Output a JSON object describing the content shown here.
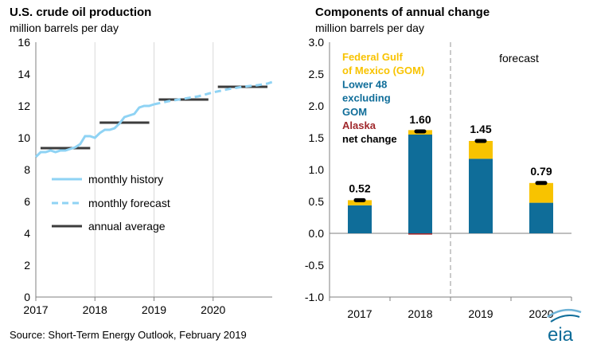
{
  "source": "Source: Short-Term Energy Outlook, February 2019",
  "logo_text": "eia",
  "colors": {
    "history": "#8fd3f4",
    "forecast_line": "#8fd3f4",
    "annual": "#3c3c3c",
    "gom": "#f8c300",
    "lower48": "#0f6d99",
    "alaska": "#a0282c",
    "net": "#000000",
    "grid": "#d9d9d9",
    "divider": "#a6a6a6"
  },
  "chart_data": [
    {
      "type": "line",
      "title": "U.S. crude oil production",
      "subtitle": "million barrels per day",
      "ylim": [
        0,
        16
      ],
      "yticks": [
        "0",
        "2",
        "4",
        "6",
        "8",
        "10",
        "12",
        "14",
        "16"
      ],
      "xlim": [
        2017,
        2021
      ],
      "xticks": [
        "2017",
        "2018",
        "2019",
        "2020"
      ],
      "legend": [
        "monthly history",
        "monthly forecast",
        "annual average"
      ],
      "series": [
        {
          "name": "monthly history",
          "style": "solid",
          "x": [
            2017.0,
            2017.083,
            2017.167,
            2017.25,
            2017.333,
            2017.417,
            2017.5,
            2017.583,
            2017.667,
            2017.75,
            2017.833,
            2017.917,
            2018.0,
            2018.083,
            2018.167,
            2018.25,
            2018.333,
            2018.417,
            2018.5,
            2018.583,
            2018.667,
            2018.75,
            2018.833,
            2018.917,
            2019.0
          ],
          "values": [
            8.8,
            9.1,
            9.1,
            9.2,
            9.1,
            9.2,
            9.2,
            9.3,
            9.4,
            9.6,
            10.1,
            10.1,
            10.0,
            10.3,
            10.5,
            10.5,
            10.6,
            10.9,
            11.3,
            11.4,
            11.5,
            11.9,
            12.0,
            12.0,
            12.1
          ]
        },
        {
          "name": "monthly forecast",
          "style": "dashed",
          "x": [
            2019.0,
            2019.25,
            2019.5,
            2019.75,
            2020.0,
            2020.25,
            2020.5,
            2020.75,
            2020.917,
            2021.0
          ],
          "values": [
            12.1,
            12.3,
            12.45,
            12.6,
            12.85,
            13.05,
            13.2,
            13.3,
            13.4,
            13.5
          ]
        },
        {
          "name": "annual average",
          "segments": [
            {
              "x0": 2017.08,
              "x1": 2017.92,
              "value": 9.35
            },
            {
              "x0": 2018.08,
              "x1": 2018.92,
              "value": 10.95
            },
            {
              "x0": 2019.08,
              "x1": 2019.92,
              "value": 12.4
            },
            {
              "x0": 2020.08,
              "x1": 2020.92,
              "value": 13.2
            }
          ]
        }
      ]
    },
    {
      "type": "bar",
      "stacked": true,
      "title": "Components of annual change",
      "subtitle": "million barrels per day",
      "ylim": [
        -1.0,
        3.0
      ],
      "yticks": [
        "-1.0",
        "-0.5",
        "0.0",
        "0.5",
        "1.0",
        "1.5",
        "2.0",
        "2.5",
        "3.0"
      ],
      "categories": [
        "2017",
        "2018",
        "2019",
        "2020"
      ],
      "series": [
        {
          "name": "Lower 48 excluding GOM",
          "values": [
            0.44,
            1.55,
            1.17,
            0.48
          ]
        },
        {
          "name": "Federal Gulf of Mexico (GOM)",
          "values": [
            0.08,
            0.07,
            0.28,
            0.31
          ]
        },
        {
          "name": "Alaska",
          "values": [
            0.0,
            -0.02,
            0.0,
            0.0
          ]
        }
      ],
      "net_change": [
        0.52,
        1.6,
        1.45,
        0.79
      ],
      "net_labels": [
        "0.52",
        "1.60",
        "1.45",
        "0.79"
      ],
      "legend_lines": [
        {
          "text": "Federal Gulf",
          "key": "gom"
        },
        {
          "text": " of Mexico (GOM)",
          "key": "gom"
        },
        {
          "text": "Lower 48",
          "key": "lower48"
        },
        {
          "text": "excluding",
          "key": "lower48"
        },
        {
          "text": "GOM",
          "key": "lower48"
        },
        {
          "text": "Alaska",
          "key": "alaska"
        },
        {
          "text": "net change",
          "key": "net"
        }
      ],
      "annotation": "forecast"
    }
  ]
}
